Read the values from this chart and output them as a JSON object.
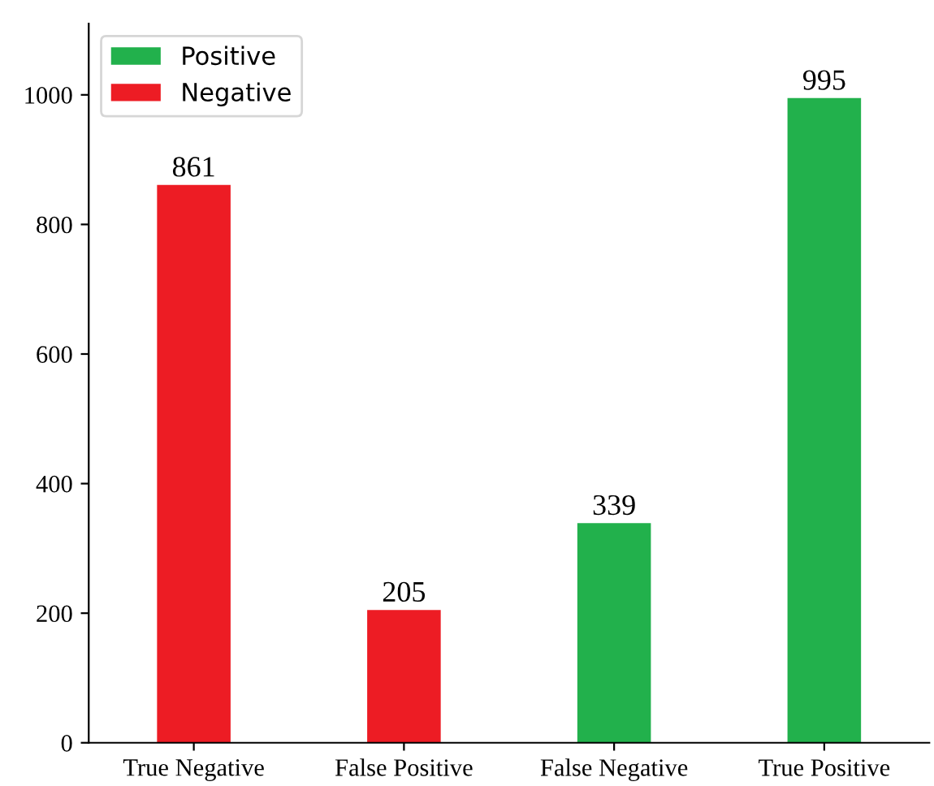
{
  "chart_data": {
    "type": "bar",
    "categories": [
      "True Negative",
      "False Positive",
      "False Negative",
      "True Positive"
    ],
    "series": [
      {
        "name": "Positive",
        "color": "#22b14c",
        "values": [
          null,
          null,
          339,
          995
        ]
      },
      {
        "name": "Negative",
        "color": "#ed1c24",
        "values": [
          861,
          205,
          null,
          null
        ]
      }
    ],
    "ylim": [
      0,
      1110
    ],
    "yticks": [
      0,
      200,
      400,
      600,
      800,
      1000
    ],
    "data_labels": true,
    "legend": "top left",
    "grid": false
  }
}
